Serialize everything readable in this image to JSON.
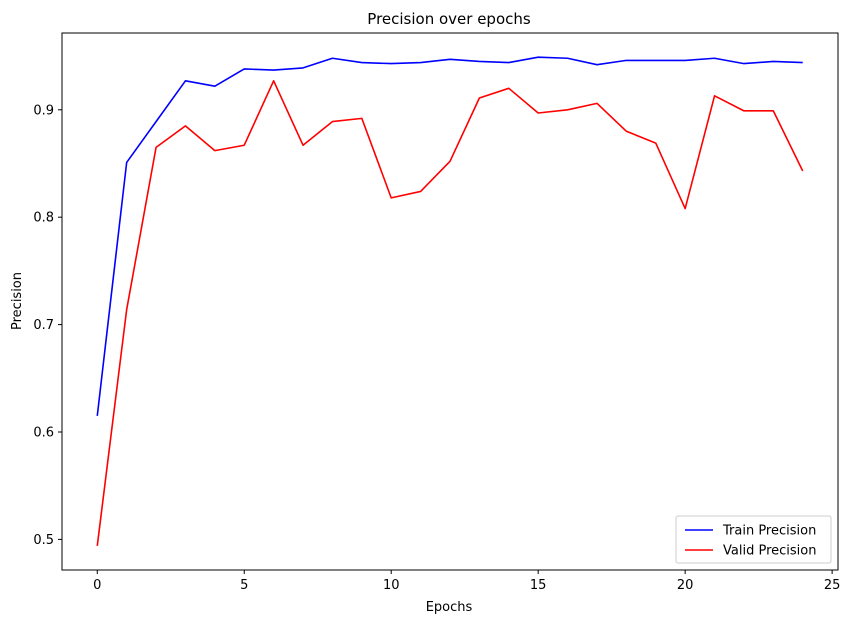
{
  "chart_data": {
    "type": "line",
    "title": "Precision over epochs",
    "xlabel": "Epochs",
    "ylabel": "Precision",
    "xlim": [
      -1.2,
      25.2
    ],
    "ylim": [
      0.4715,
      0.9715
    ],
    "xticks": [
      0,
      5,
      10,
      15,
      20,
      25
    ],
    "yticks": [
      0.5,
      0.6,
      0.7,
      0.8,
      0.9
    ],
    "xtick_labels": [
      "0",
      "5",
      "10",
      "15",
      "20",
      "25"
    ],
    "ytick_labels": [
      "0.5",
      "0.6",
      "0.7",
      "0.8",
      "0.9"
    ],
    "grid": false,
    "legend_position": "lower-right",
    "x": [
      0,
      1,
      2,
      3,
      4,
      5,
      6,
      7,
      8,
      9,
      10,
      11,
      12,
      13,
      14,
      15,
      16,
      17,
      18,
      19,
      20,
      21,
      22,
      23,
      24
    ],
    "series": [
      {
        "name": "Train Precision",
        "color": "#0000ff",
        "values": [
          0.615,
          0.851,
          0.889,
          0.927,
          0.922,
          0.938,
          0.937,
          0.939,
          0.948,
          0.944,
          0.943,
          0.944,
          0.947,
          0.945,
          0.944,
          0.949,
          0.948,
          0.942,
          0.946,
          0.946,
          0.946,
          0.948,
          0.943,
          0.945,
          0.944
        ]
      },
      {
        "name": "Valid Precision",
        "color": "#ff0000",
        "values": [
          0.494,
          0.714,
          0.865,
          0.885,
          0.862,
          0.867,
          0.927,
          0.867,
          0.889,
          0.892,
          0.818,
          0.824,
          0.852,
          0.911,
          0.92,
          0.897,
          0.9,
          0.906,
          0.88,
          0.869,
          0.808,
          0.913,
          0.899,
          0.899,
          0.843
        ]
      }
    ]
  }
}
